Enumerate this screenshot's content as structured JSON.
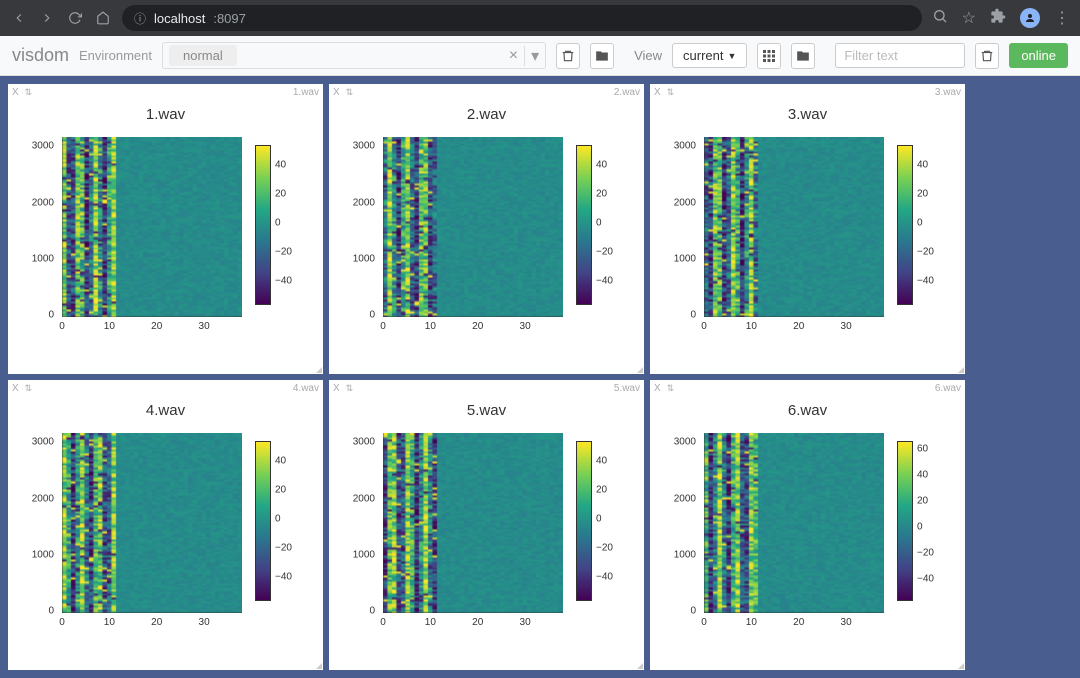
{
  "browser": {
    "url_host": "localhost",
    "url_port": ":8097"
  },
  "toolbar": {
    "brand": "visdom",
    "env_label": "Environment",
    "env_value": "normal",
    "env_clear": "×",
    "view_label": "View",
    "view_dropdown": "current",
    "filter_placeholder": "Filter text",
    "online_label": "online"
  },
  "panes": [
    {
      "title": "1.wav",
      "mini": "1.wav"
    },
    {
      "title": "2.wav",
      "mini": "2.wav"
    },
    {
      "title": "3.wav",
      "mini": "3.wav"
    },
    {
      "title": "4.wav",
      "mini": "4.wav"
    },
    {
      "title": "5.wav",
      "mini": "5.wav"
    },
    {
      "title": "6.wav",
      "mini": "6.wav"
    }
  ],
  "chart_spec": {
    "type": "heatmap",
    "y_ticks": [
      0,
      1000,
      2000,
      3000
    ],
    "x_ticks": [
      0,
      10,
      20,
      30
    ],
    "y_range": [
      0,
      3200
    ],
    "x_range": [
      0,
      38
    ],
    "colorbar_ticks_standard": [
      -40,
      -20,
      0,
      20,
      40
    ],
    "colorbar_range_standard": [
      -55,
      55
    ],
    "colorbar_ticks_alt": [
      -40,
      -20,
      0,
      20,
      40,
      60
    ],
    "colorbar_range_alt": [
      -55,
      68
    ],
    "viridis_stops": [
      "#440154",
      "#414487",
      "#2a788e",
      "#22a884",
      "#7ad151",
      "#fde725"
    ],
    "background": "#ffffff",
    "tick_font_size": 10,
    "title_font_size": 15,
    "heatmap_seed_hint": "dense vertical structure x<12, uniform teal x>=12"
  },
  "colors": {
    "workspace_bg": "#4a5d8f",
    "toolbar_bg": "#f8f9fa",
    "chrome_bg": "#38393c",
    "online_btn": "#5cb85c"
  }
}
